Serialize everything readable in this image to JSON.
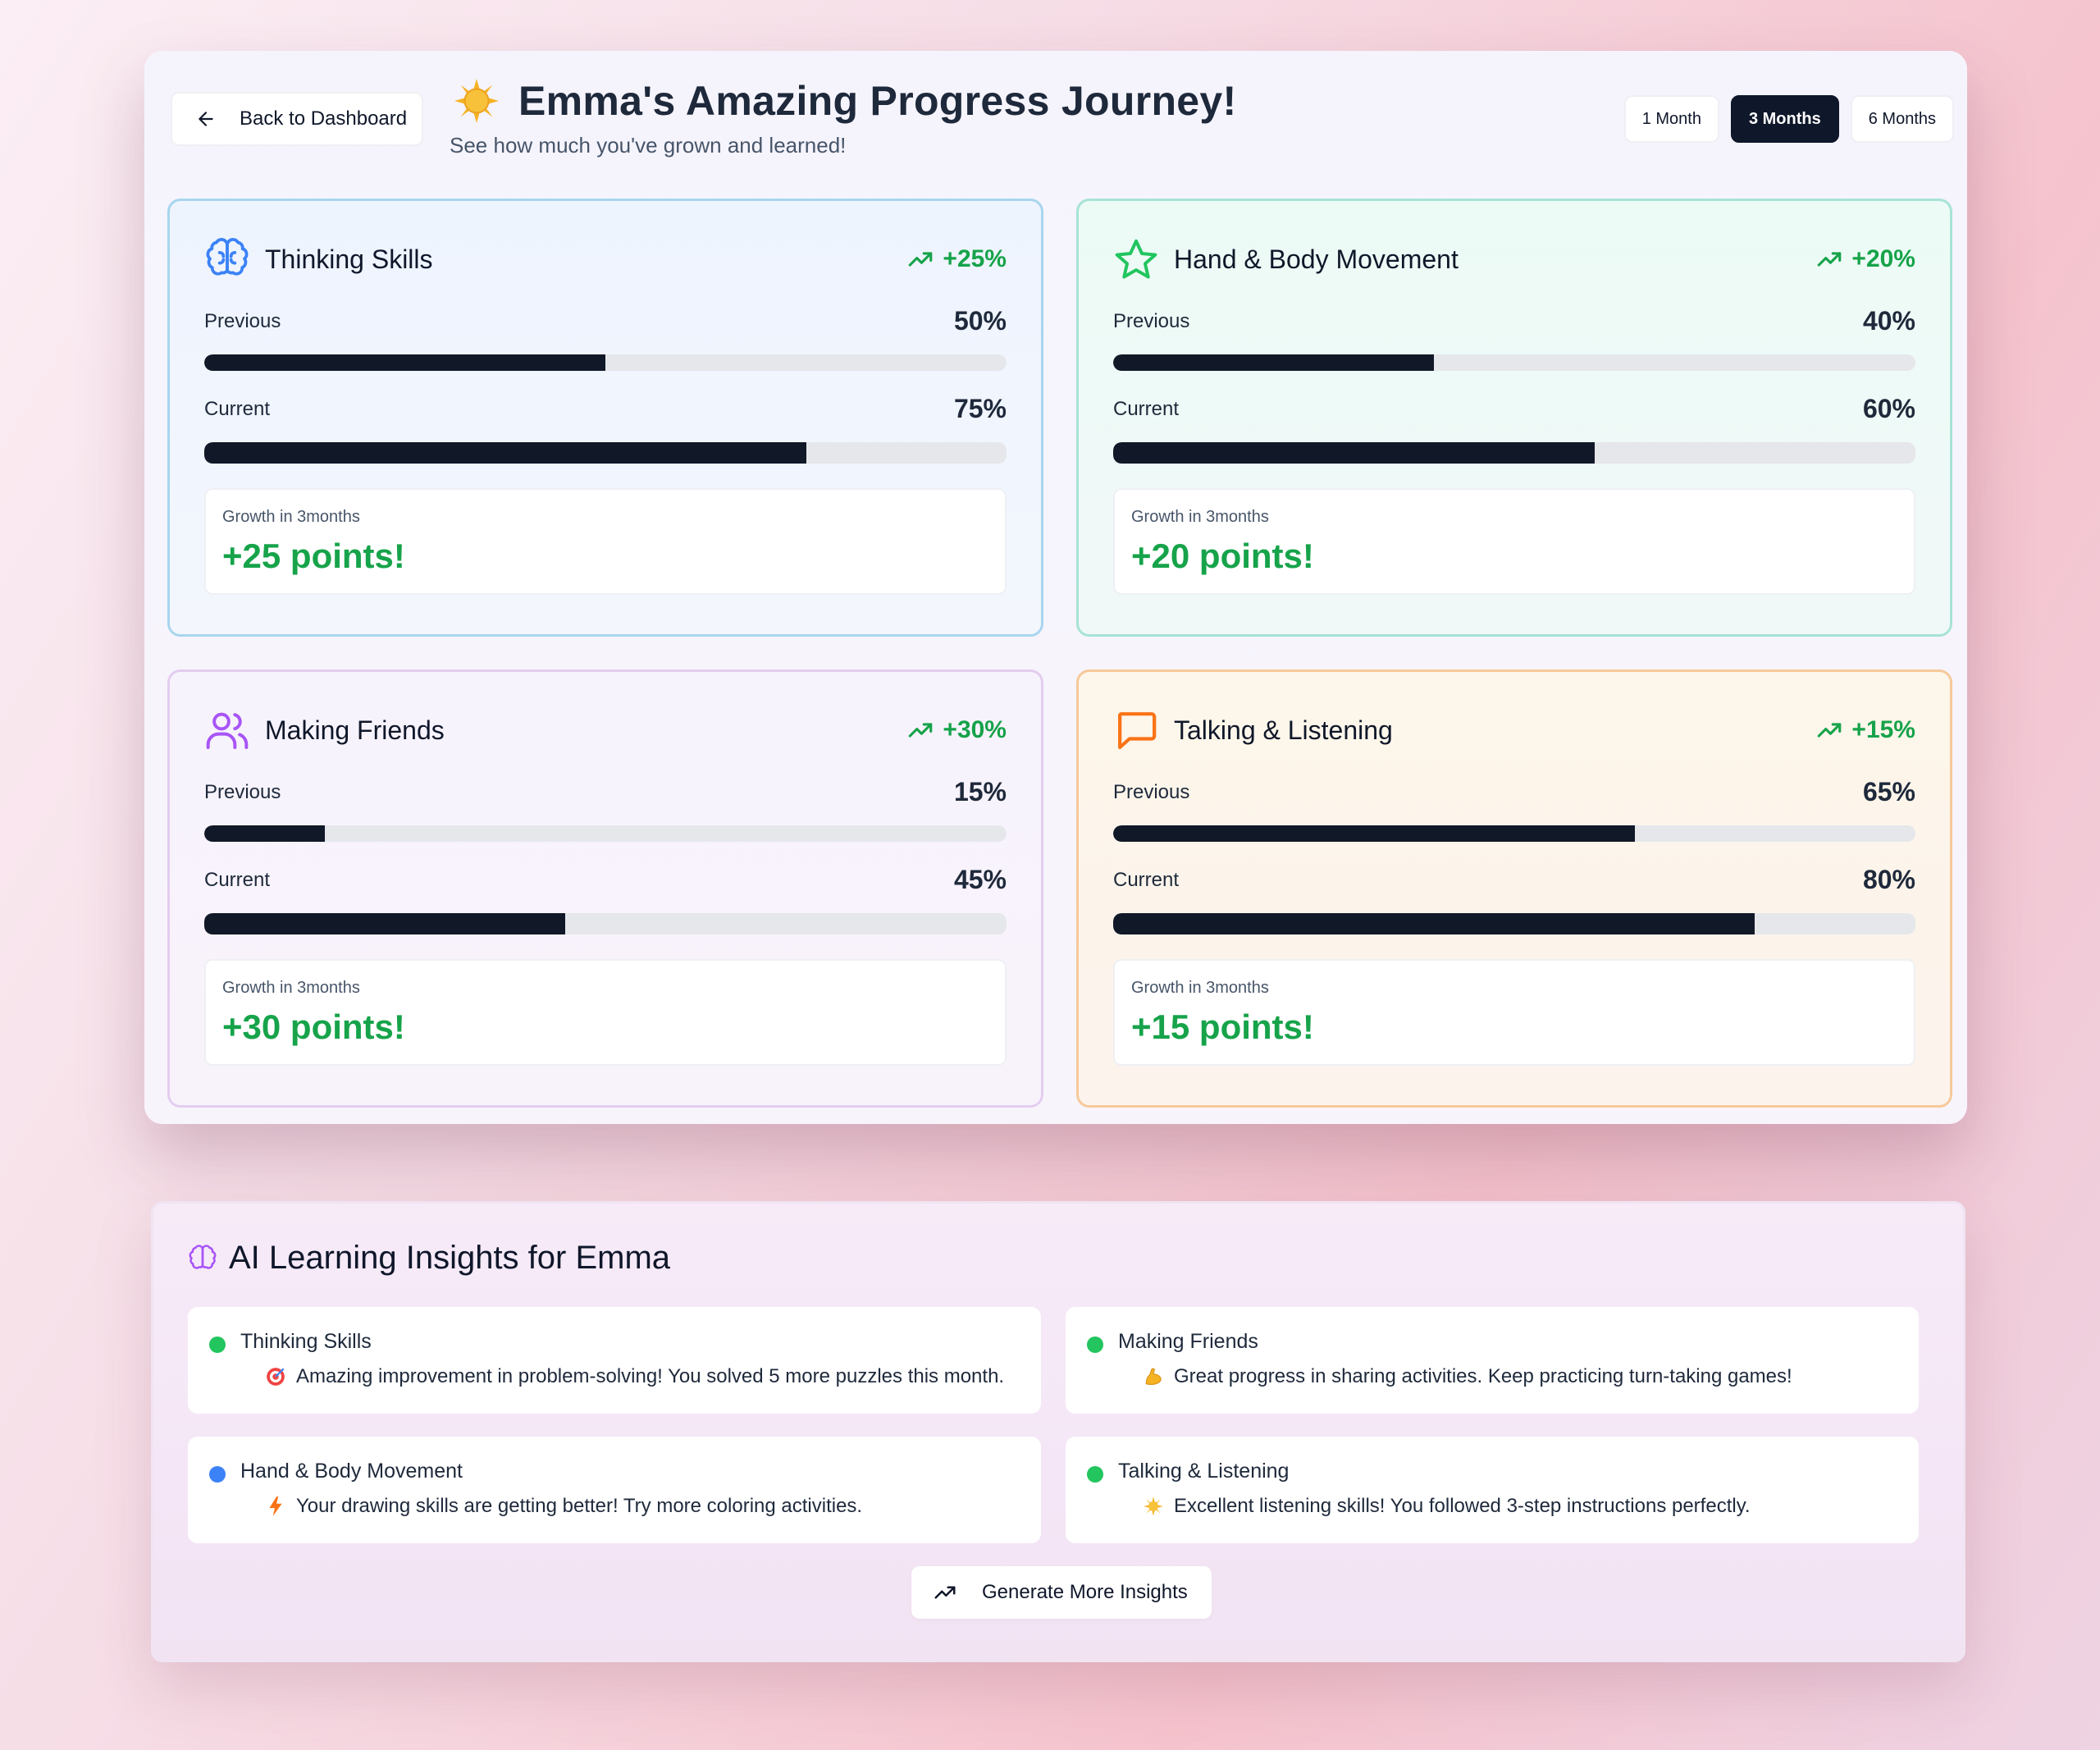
{
  "header": {
    "back_label": "Back to Dashboard",
    "title": "Emma's Amazing Progress Journey!",
    "subtitle": "See how much you've grown and learned!",
    "ranges": [
      {
        "label": "1 Month",
        "active": false
      },
      {
        "label": "3 Months",
        "active": true
      },
      {
        "label": "6 Months",
        "active": false
      }
    ]
  },
  "labels": {
    "previous": "Previous",
    "current": "Current"
  },
  "skills": [
    {
      "title": "Thinking Skills",
      "icon": "brain-icon",
      "change": "+25%",
      "previous": 50,
      "previous_label": "50%",
      "current": 75,
      "current_label": "75%",
      "growth_label": "Growth in 3months",
      "growth_value": "+25 points!",
      "accent": "#3b82f6",
      "border": "#a8d6ee",
      "bg": "#eef4fe"
    },
    {
      "title": "Hand & Body Movement",
      "icon": "star-icon",
      "change": "+20%",
      "previous": 40,
      "previous_label": "40%",
      "current": 60,
      "current_label": "60%",
      "growth_label": "Growth in 3months",
      "growth_value": "+20 points!",
      "accent": "#22c55e",
      "border": "#a7e3d6",
      "bg": "#ecfbf6"
    },
    {
      "title": "Making Friends",
      "icon": "users-icon",
      "change": "+30%",
      "previous": 15,
      "previous_label": "15%",
      "current": 45,
      "current_label": "45%",
      "growth_label": "Growth in 3months",
      "growth_value": "+30 points!",
      "accent": "#a855f7",
      "border": "#e3cdf0",
      "bg": "#f7f3fc"
    },
    {
      "title": "Talking & Listening",
      "icon": "chat-icon",
      "change": "+15%",
      "previous": 65,
      "previous_label": "65%",
      "current": 80,
      "current_label": "80%",
      "growth_label": "Growth in 3months",
      "growth_value": "+15 points!",
      "accent": "#f97316",
      "border": "#f6c99a",
      "bg": "#fdf6ea"
    }
  ],
  "insights": {
    "title": "AI Learning Insights for Emma",
    "items": [
      {
        "skill": "Thinking Skills",
        "text": "Amazing improvement in problem-solving! You solved 5 more puzzles this month.",
        "dot": "#22c55e",
        "emoji": "target-icon"
      },
      {
        "skill": "Making Friends",
        "text": "Great progress in sharing activities. Keep practicing turn-taking games!",
        "dot": "#22c55e",
        "emoji": "muscle-icon"
      },
      {
        "skill": "Hand & Body Movement",
        "text": "Your drawing skills are getting better! Try more coloring activities.",
        "dot": "#3b82f6",
        "emoji": "lightning-icon"
      },
      {
        "skill": "Talking & Listening",
        "text": "Excellent listening skills! You followed 3-step instructions perfectly.",
        "dot": "#22c55e",
        "emoji": "sparkle-icon"
      }
    ],
    "button_label": "Generate More Insights"
  }
}
